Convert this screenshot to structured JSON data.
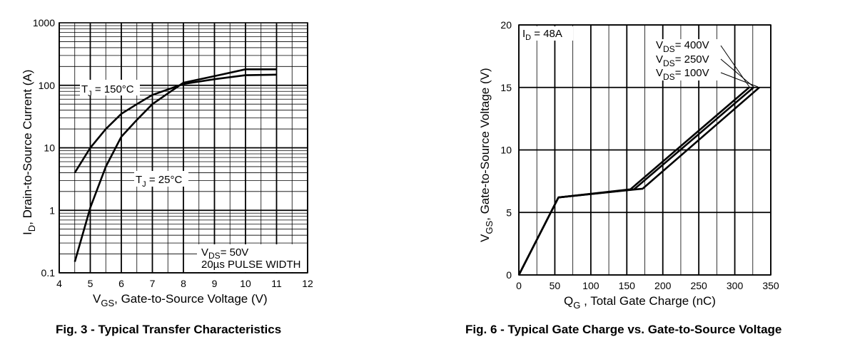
{
  "chart_data": [
    {
      "type": "line",
      "title": "Fig. 3 - Typical Transfer Characteristics",
      "xlabel_main": "V",
      "xlabel_sub": "GS",
      "xlabel_rest": ", Gate-to-Source Voltage (V)",
      "ylabel_main": "I",
      "ylabel_sub": "D",
      "ylabel_rest": ",  Drain-to-Source Current (A)",
      "xlim": [
        4,
        12
      ],
      "ylim": [
        0.1,
        1000
      ],
      "yscale": "log",
      "x_ticks": [
        "4",
        "5",
        "6",
        "7",
        "8",
        "9",
        "10",
        "11",
        "12"
      ],
      "y_ticks": [
        "0.1",
        "1",
        "10",
        "100",
        "1000"
      ],
      "series": [
        {
          "name": "TJ = 150°C",
          "label_main": "T",
          "label_sub": "J",
          "label_rest": " = 150°C",
          "x": [
            4.5,
            5.0,
            5.5,
            6.0,
            6.5,
            7.0,
            8.0,
            9.0,
            10.0,
            11.0
          ],
          "y": [
            4,
            10,
            20,
            35,
            50,
            70,
            105,
            125,
            145,
            148
          ]
        },
        {
          "name": "TJ = 25°C",
          "label_main": "T",
          "label_sub": "J",
          "label_rest": " = 25°C",
          "x": [
            4.5,
            5.0,
            5.5,
            6.0,
            6.5,
            7.0,
            8.0,
            9.0,
            10.0,
            11.0
          ],
          "y": [
            0.15,
            1.1,
            5,
            15,
            28,
            50,
            110,
            140,
            180,
            180
          ]
        }
      ],
      "annotations": {
        "vds_main": "V",
        "vds_sub": "DS",
        "vds_rest": "= 50V",
        "pulse": "20µs PULSE WIDTH"
      }
    },
    {
      "type": "line",
      "title": "Fig. 6 - Typical Gate Charge vs. Gate-to-Source Voltage",
      "xlabel_main": "Q",
      "xlabel_sub": "G",
      "xlabel_rest": " , Total Gate Charge (nC)",
      "ylabel_main": "V",
      "ylabel_sub": "GS",
      "ylabel_rest": ", Gate-to-Source Voltage (V)",
      "xlim": [
        0,
        350
      ],
      "ylim": [
        0,
        20
      ],
      "x_ticks": [
        "0",
        "50",
        "100",
        "150",
        "200",
        "250",
        "300",
        "350"
      ],
      "y_ticks": [
        "0",
        "5",
        "10",
        "15",
        "20"
      ],
      "series": [
        {
          "name": "VDS= 400V",
          "label_main": "V",
          "label_sub": "DS",
          "label_rest": "= 400V",
          "x": [
            0,
            55,
            155,
            320
          ],
          "y": [
            0,
            6.2,
            6.85,
            15
          ]
        },
        {
          "name": "VDS= 250V",
          "label_main": "V",
          "label_sub": "DS",
          "label_rest": "= 250V",
          "x": [
            0,
            55,
            160,
            326
          ],
          "y": [
            0,
            6.2,
            6.85,
            15
          ]
        },
        {
          "name": "VDS= 100V",
          "label_main": "V",
          "label_sub": "DS",
          "label_rest": "= 100V",
          "x": [
            0,
            55,
            172,
            334
          ],
          "y": [
            0,
            6.2,
            6.9,
            15
          ]
        }
      ],
      "annotations": {
        "id_main": "I",
        "id_sub": "D",
        "id_rest": " = 48A"
      }
    }
  ]
}
